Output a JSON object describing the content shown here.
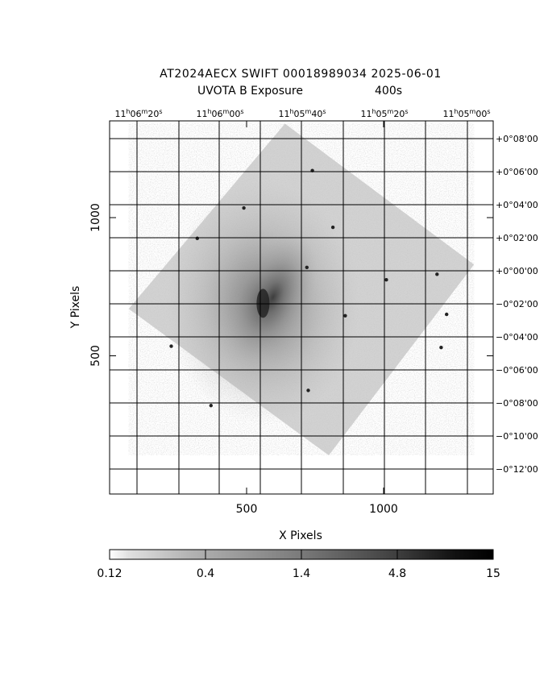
{
  "title": {
    "line1": "AT2024AECX SWIFT 00018989034 2025-06-01",
    "line2_left": "UVOTA B Exposure",
    "line2_right": "400s"
  },
  "chart_data": {
    "type": "heatmap",
    "description_kind": "astronomical image",
    "xlabel": "X Pixels",
    "ylabel": "Y Pixels",
    "xlim": [
      0,
      1400
    ],
    "ylim": [
      0,
      1350
    ],
    "x_ticks": [
      500,
      1000
    ],
    "y_ticks": [
      500,
      1000
    ],
    "ra_ticks": [
      {
        "label": "11h06m20s",
        "h": "11",
        "m": "06",
        "s": "20"
      },
      {
        "label": "11h06m00s",
        "h": "11",
        "m": "06",
        "s": "00"
      },
      {
        "label": "11h05m40s",
        "h": "11",
        "m": "05",
        "s": "40"
      },
      {
        "label": "11h05m20s",
        "h": "11",
        "m": "05",
        "s": "20"
      },
      {
        "label": "11h05m00s",
        "h": "11",
        "m": "05",
        "s": "00"
      }
    ],
    "dec_ticks": [
      "+0°08'00",
      "+0°06'00",
      "+0°04'00",
      "+0°02'00",
      "+0°00'00",
      "−0°02'00",
      "−0°04'00",
      "−0°06'00",
      "−0°08'00",
      "−0°10'00",
      "−0°12'00"
    ],
    "colorbar": {
      "labels": [
        "0.12",
        "0.4",
        "1.4",
        "4.8",
        "15"
      ],
      "values": [
        0.12,
        0.4,
        1.4,
        4.8,
        15
      ],
      "scale": "log",
      "colormap": "grayscale-inverted"
    },
    "galaxy_center": {
      "x": 560,
      "y": 690
    },
    "footprint_corners": [
      {
        "x": 640,
        "y": 1340
      },
      {
        "x": 1330,
        "y": 830
      },
      {
        "x": 800,
        "y": 140
      },
      {
        "x": 70,
        "y": 670
      }
    ],
    "sources": [
      {
        "x": 490,
        "y": 1035
      },
      {
        "x": 815,
        "y": 965
      },
      {
        "x": 740,
        "y": 1170
      },
      {
        "x": 1195,
        "y": 795
      },
      {
        "x": 1010,
        "y": 775
      },
      {
        "x": 1210,
        "y": 530
      },
      {
        "x": 725,
        "y": 375
      },
      {
        "x": 225,
        "y": 535
      },
      {
        "x": 370,
        "y": 320
      },
      {
        "x": 320,
        "y": 925
      },
      {
        "x": 720,
        "y": 820
      },
      {
        "x": 1230,
        "y": 650
      },
      {
        "x": 860,
        "y": 645
      }
    ]
  }
}
